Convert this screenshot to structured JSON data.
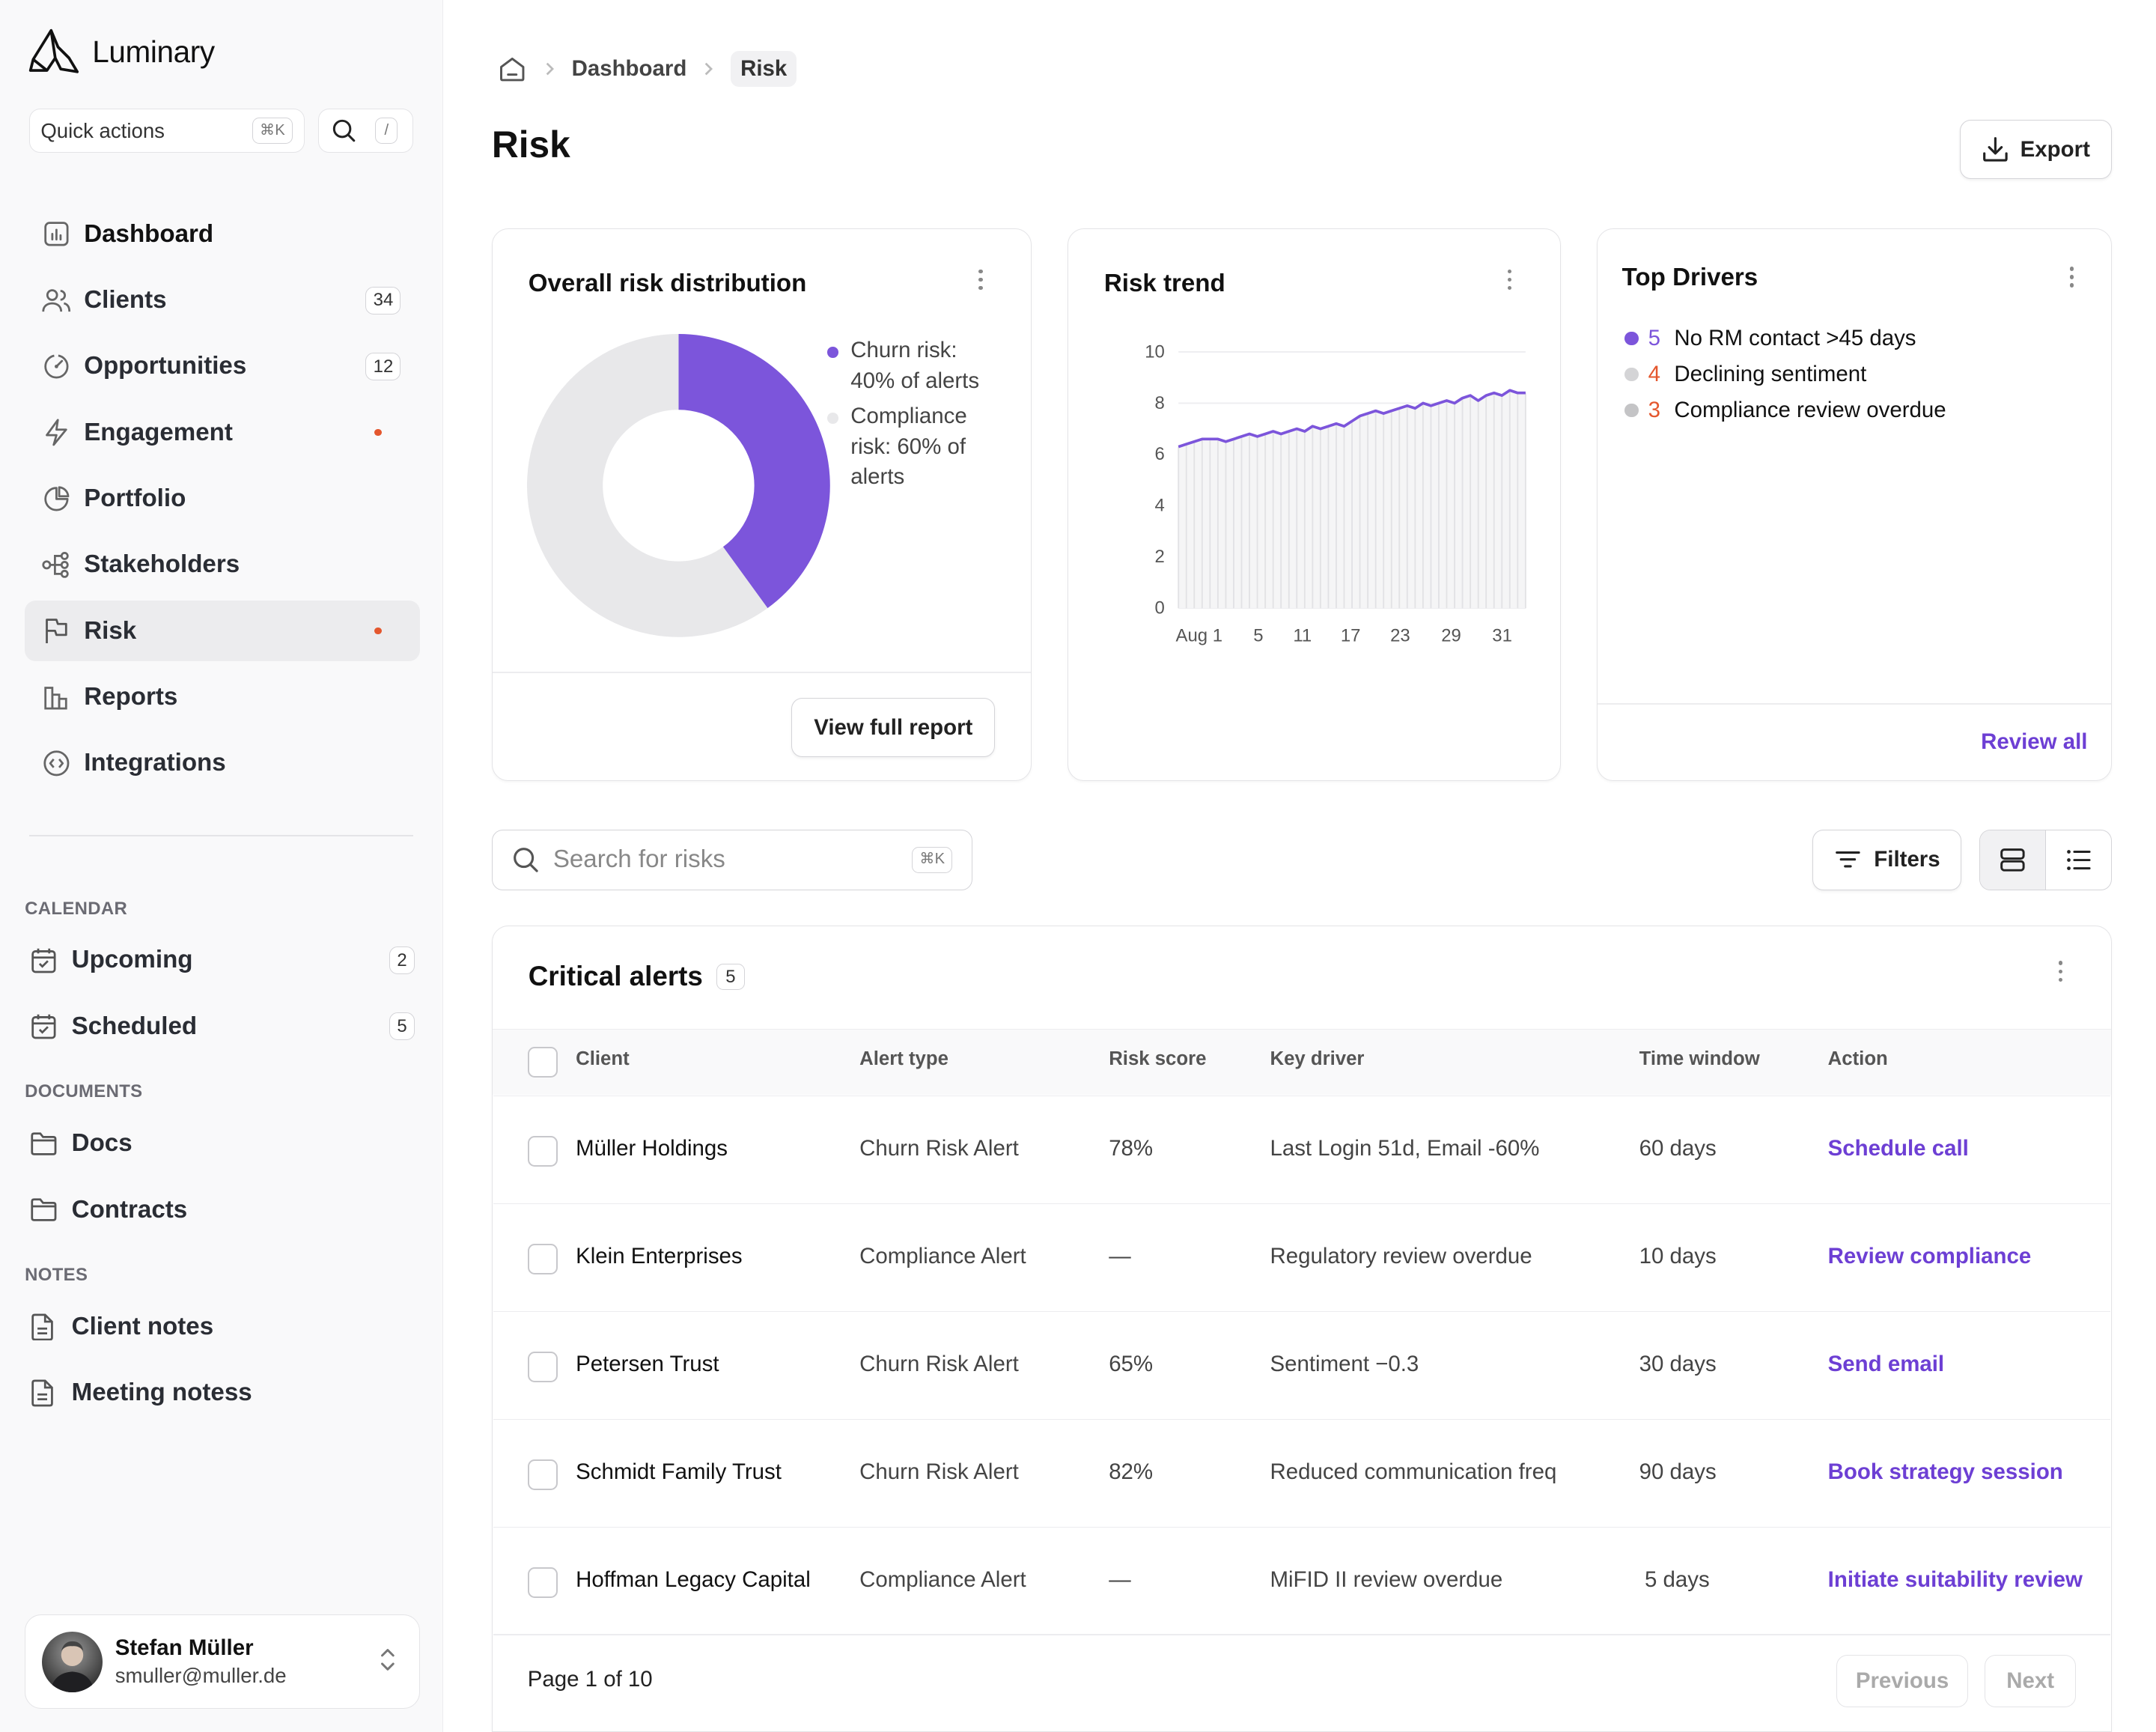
{
  "app": {
    "name": "Luminary"
  },
  "quick_actions": {
    "label": "Quick actions",
    "shortcut": "⌘K",
    "search_shortcut": "/"
  },
  "nav": {
    "items": [
      {
        "label": "Dashboard"
      },
      {
        "label": "Clients",
        "count": "34"
      },
      {
        "label": "Opportunities",
        "count": "12"
      },
      {
        "label": "Engagement"
      },
      {
        "label": "Portfolio"
      },
      {
        "label": "Stakeholders"
      },
      {
        "label": "Risk"
      },
      {
        "label": "Reports"
      },
      {
        "label": "Integrations"
      }
    ]
  },
  "calendar": {
    "heading": "CALENDAR",
    "items": [
      {
        "label": "Upcoming",
        "count": "2"
      },
      {
        "label": "Scheduled",
        "count": "5"
      }
    ]
  },
  "documents": {
    "heading": "DOCUMENTS",
    "items": [
      {
        "label": "Docs"
      },
      {
        "label": "Contracts"
      }
    ]
  },
  "notes": {
    "heading": "NOTES",
    "items": [
      {
        "label": "Client notes"
      },
      {
        "label": "Meeting notess"
      }
    ]
  },
  "user": {
    "name": "Stefan Müller",
    "email": "smuller@muller.de"
  },
  "breadcrumb": {
    "parent": "Dashboard",
    "current": "Risk"
  },
  "page": {
    "title": "Risk",
    "export_label": "Export"
  },
  "distribution": {
    "title": "Overall risk distribution",
    "legend": [
      "Churn risk: 40% of alerts",
      "Compliance risk: 60% of alerts"
    ],
    "button": "View full report"
  },
  "trend": {
    "title": "Risk trend"
  },
  "drivers": {
    "title": "Top Drivers",
    "items": [
      {
        "count": "5",
        "label": "No RM contact >45 days"
      },
      {
        "count": "4",
        "label": "Declining sentiment"
      },
      {
        "count": "3",
        "label": "Compliance review overdue"
      }
    ],
    "link": "Review all"
  },
  "search": {
    "placeholder": "Search for risks",
    "shortcut": "⌘K"
  },
  "filters_label": "Filters",
  "alerts": {
    "title": "Critical alerts",
    "count": "5",
    "columns": [
      "Client",
      "Alert type",
      "Risk score",
      "Key driver",
      "Time window",
      "Action"
    ],
    "rows": [
      {
        "client": "Müller Holdings",
        "type": "Churn Risk Alert",
        "score": "78%",
        "driver": "Last Login 51d, Email -60%",
        "window": "60 days",
        "action": "Schedule call"
      },
      {
        "client": "Klein Enterprises",
        "type": "Compliance Alert",
        "score": "—",
        "driver": "Regulatory review overdue",
        "window": "10 days",
        "action": "Review compliance"
      },
      {
        "client": "Petersen Trust",
        "type": "Churn Risk Alert",
        "score": "65%",
        "driver": "Sentiment −0.3",
        "window": "30 days",
        "action": "Send email"
      },
      {
        "client": "Schmidt Family Trust",
        "type": "Churn Risk Alert",
        "score": "82%",
        "driver": "Reduced communication freq",
        "window": "90 days",
        "action": "Book strategy session"
      },
      {
        "client": "Hoffman Legacy Capital",
        "type": "Compliance Alert",
        "score": "—",
        "driver": "MiFID II review overdue",
        "window": "5 days",
        "action": "Initiate suitability review"
      }
    ],
    "pagination": {
      "label": "Page 1 of 10",
      "prev": "Previous",
      "next": "Next"
    }
  },
  "colors": {
    "accent": "#7c55db",
    "compliance": "#e8e8ea",
    "alert_orange": "#e4572e"
  },
  "chart_data": [
    {
      "type": "pie",
      "title": "Overall risk distribution",
      "categories": [
        "Churn risk",
        "Compliance risk"
      ],
      "values": [
        40,
        60
      ]
    },
    {
      "type": "line",
      "title": "Risk trend",
      "x_ticks": [
        "Aug 1",
        "5",
        "11",
        "17",
        "23",
        "29",
        "31"
      ],
      "ylim": [
        0,
        10
      ],
      "y_ticks": [
        0,
        2,
        4,
        6,
        8,
        10
      ],
      "grid": true,
      "series": [
        {
          "values": [
            6.3,
            6.4,
            6.5,
            6.6,
            6.6,
            6.6,
            6.5,
            6.6,
            6.7,
            6.8,
            6.7,
            6.8,
            6.9,
            6.8,
            6.9,
            7.0,
            6.9,
            7.1,
            7.0,
            7.1,
            7.2,
            7.1,
            7.3,
            7.5,
            7.6,
            7.7,
            7.6,
            7.7,
            7.8,
            7.9,
            7.8,
            8.0,
            7.9,
            8.0,
            8.1,
            8.0,
            8.2,
            8.3,
            8.1,
            8.3,
            8.4,
            8.3,
            8.5,
            8.4,
            8.4
          ]
        }
      ]
    }
  ]
}
